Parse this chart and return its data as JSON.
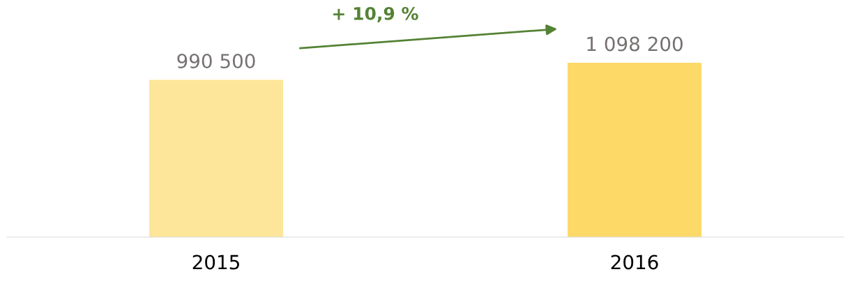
{
  "chart_data": {
    "type": "bar",
    "categories": [
      "2015",
      "2016"
    ],
    "values": [
      990500,
      1098200
    ],
    "colors": [
      "#fde699",
      "#fdd968"
    ],
    "value_labels": [
      "990 500",
      "1 098 200"
    ],
    "annotations": [
      "+ 10,9 %"
    ],
    "grid": false,
    "legend": false
  }
}
